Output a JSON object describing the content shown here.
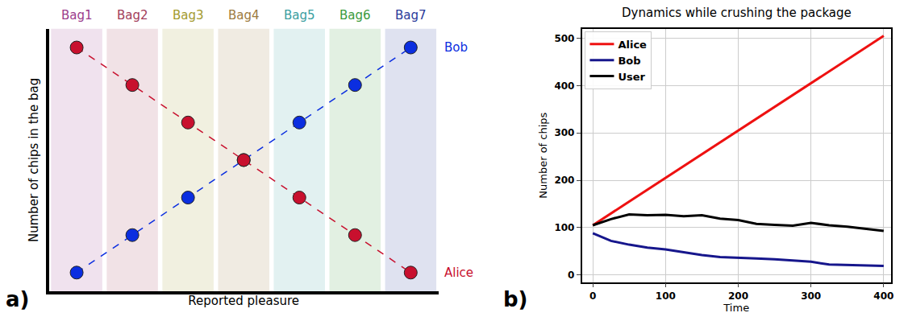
{
  "chart_data": [
    {
      "type": "line",
      "panel_label": "a)",
      "categories": [
        "Bag1",
        "Bag2",
        "Bag3",
        "Bag4",
        "Bag5",
        "Bag6",
        "Bag7"
      ],
      "colors": [
        "#9b3c8c",
        "#a23c5a",
        "#a39a2e",
        "#9c7a3e",
        "#3a9ea0",
        "#3a9a3c",
        "#2a3a9a"
      ],
      "x_label": "Reported pleasure",
      "y_label": "Number of chips in the bag",
      "tick_labels": "x",
      "ylim": [
        0.5,
        7.5
      ],
      "series": [
        {
          "name": "Bob",
          "color": "#0b2ee0",
          "marker": "circle",
          "line_style": "dashed",
          "values": [
            1,
            2,
            3,
            4,
            5,
            6,
            7
          ]
        },
        {
          "name": "Alice",
          "color": "#c8102e",
          "marker": "circle",
          "line_style": "dashed",
          "values": [
            7,
            6,
            5,
            4,
            3,
            2,
            1
          ]
        }
      ]
    },
    {
      "type": "line",
      "panel_label": "b)",
      "title": "Dynamics while crushing the package",
      "x_label": "Time",
      "y_label": "Number of chips",
      "x": [
        0,
        25,
        50,
        75,
        100,
        125,
        150,
        175,
        200,
        225,
        250,
        275,
        300,
        325,
        350,
        375,
        400
      ],
      "xlim": [
        -15,
        410
      ],
      "xticks": [
        0,
        100,
        200,
        300,
        400
      ],
      "ylim": [
        -15,
        520
      ],
      "yticks": [
        0,
        100,
        200,
        300,
        400,
        500
      ],
      "grid": true,
      "legend": "upper left",
      "series": [
        {
          "name": "Alice",
          "color": "#ee1111",
          "values": [
            105,
            130,
            155,
            180,
            205,
            230,
            255,
            280,
            305,
            330,
            355,
            380,
            405,
            430,
            455,
            480,
            505
          ]
        },
        {
          "name": "Bob",
          "color": "#16168c",
          "values": [
            88,
            72,
            64,
            58,
            54,
            48,
            42,
            38,
            37,
            35,
            33,
            30,
            28,
            22,
            21,
            20,
            19
          ]
        },
        {
          "name": "User",
          "color": "#000000",
          "values": [
            105,
            118,
            128,
            126,
            127,
            124,
            126,
            119,
            116,
            108,
            106,
            104,
            110,
            105,
            102,
            97,
            93
          ]
        }
      ]
    }
  ]
}
